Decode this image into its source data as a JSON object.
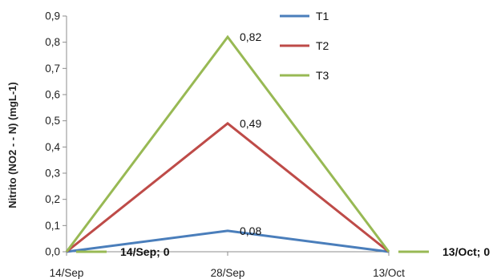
{
  "chart_data": {
    "type": "line",
    "categories": [
      "14/Sep",
      "28/Sep",
      "13/Oct"
    ],
    "ylabel": "Nitrito (NO2 - - N) (mgL-1)",
    "xlabel": "",
    "ylim": [
      0,
      0.9
    ],
    "yticks": [
      "0,0",
      "0,1",
      "0,2",
      "0,3",
      "0,4",
      "0,5",
      "0,6",
      "0,7",
      "0,8",
      "0,9"
    ],
    "grid": false,
    "legend_position": "top-right",
    "series": [
      {
        "name": "T1",
        "values": [
          0,
          0.08,
          0
        ],
        "color": "#4a7ebb"
      },
      {
        "name": "T2",
        "values": [
          0,
          0.49,
          0
        ],
        "color": "#be4b48"
      },
      {
        "name": "T3",
        "values": [
          0,
          0.82,
          0
        ],
        "color": "#98b954"
      }
    ],
    "data_labels": [
      {
        "text": "0,82",
        "series": 2,
        "point": 1
      },
      {
        "text": "0,49",
        "series": 1,
        "point": 1
      },
      {
        "text": "0,08",
        "series": 0,
        "point": 1
      }
    ],
    "callouts": [
      {
        "text": "14/Sep; 0",
        "series": 2,
        "point": 0,
        "side": "right"
      },
      {
        "text": "13/Oct; 0",
        "series": 2,
        "point": 2,
        "side": "right"
      }
    ]
  }
}
